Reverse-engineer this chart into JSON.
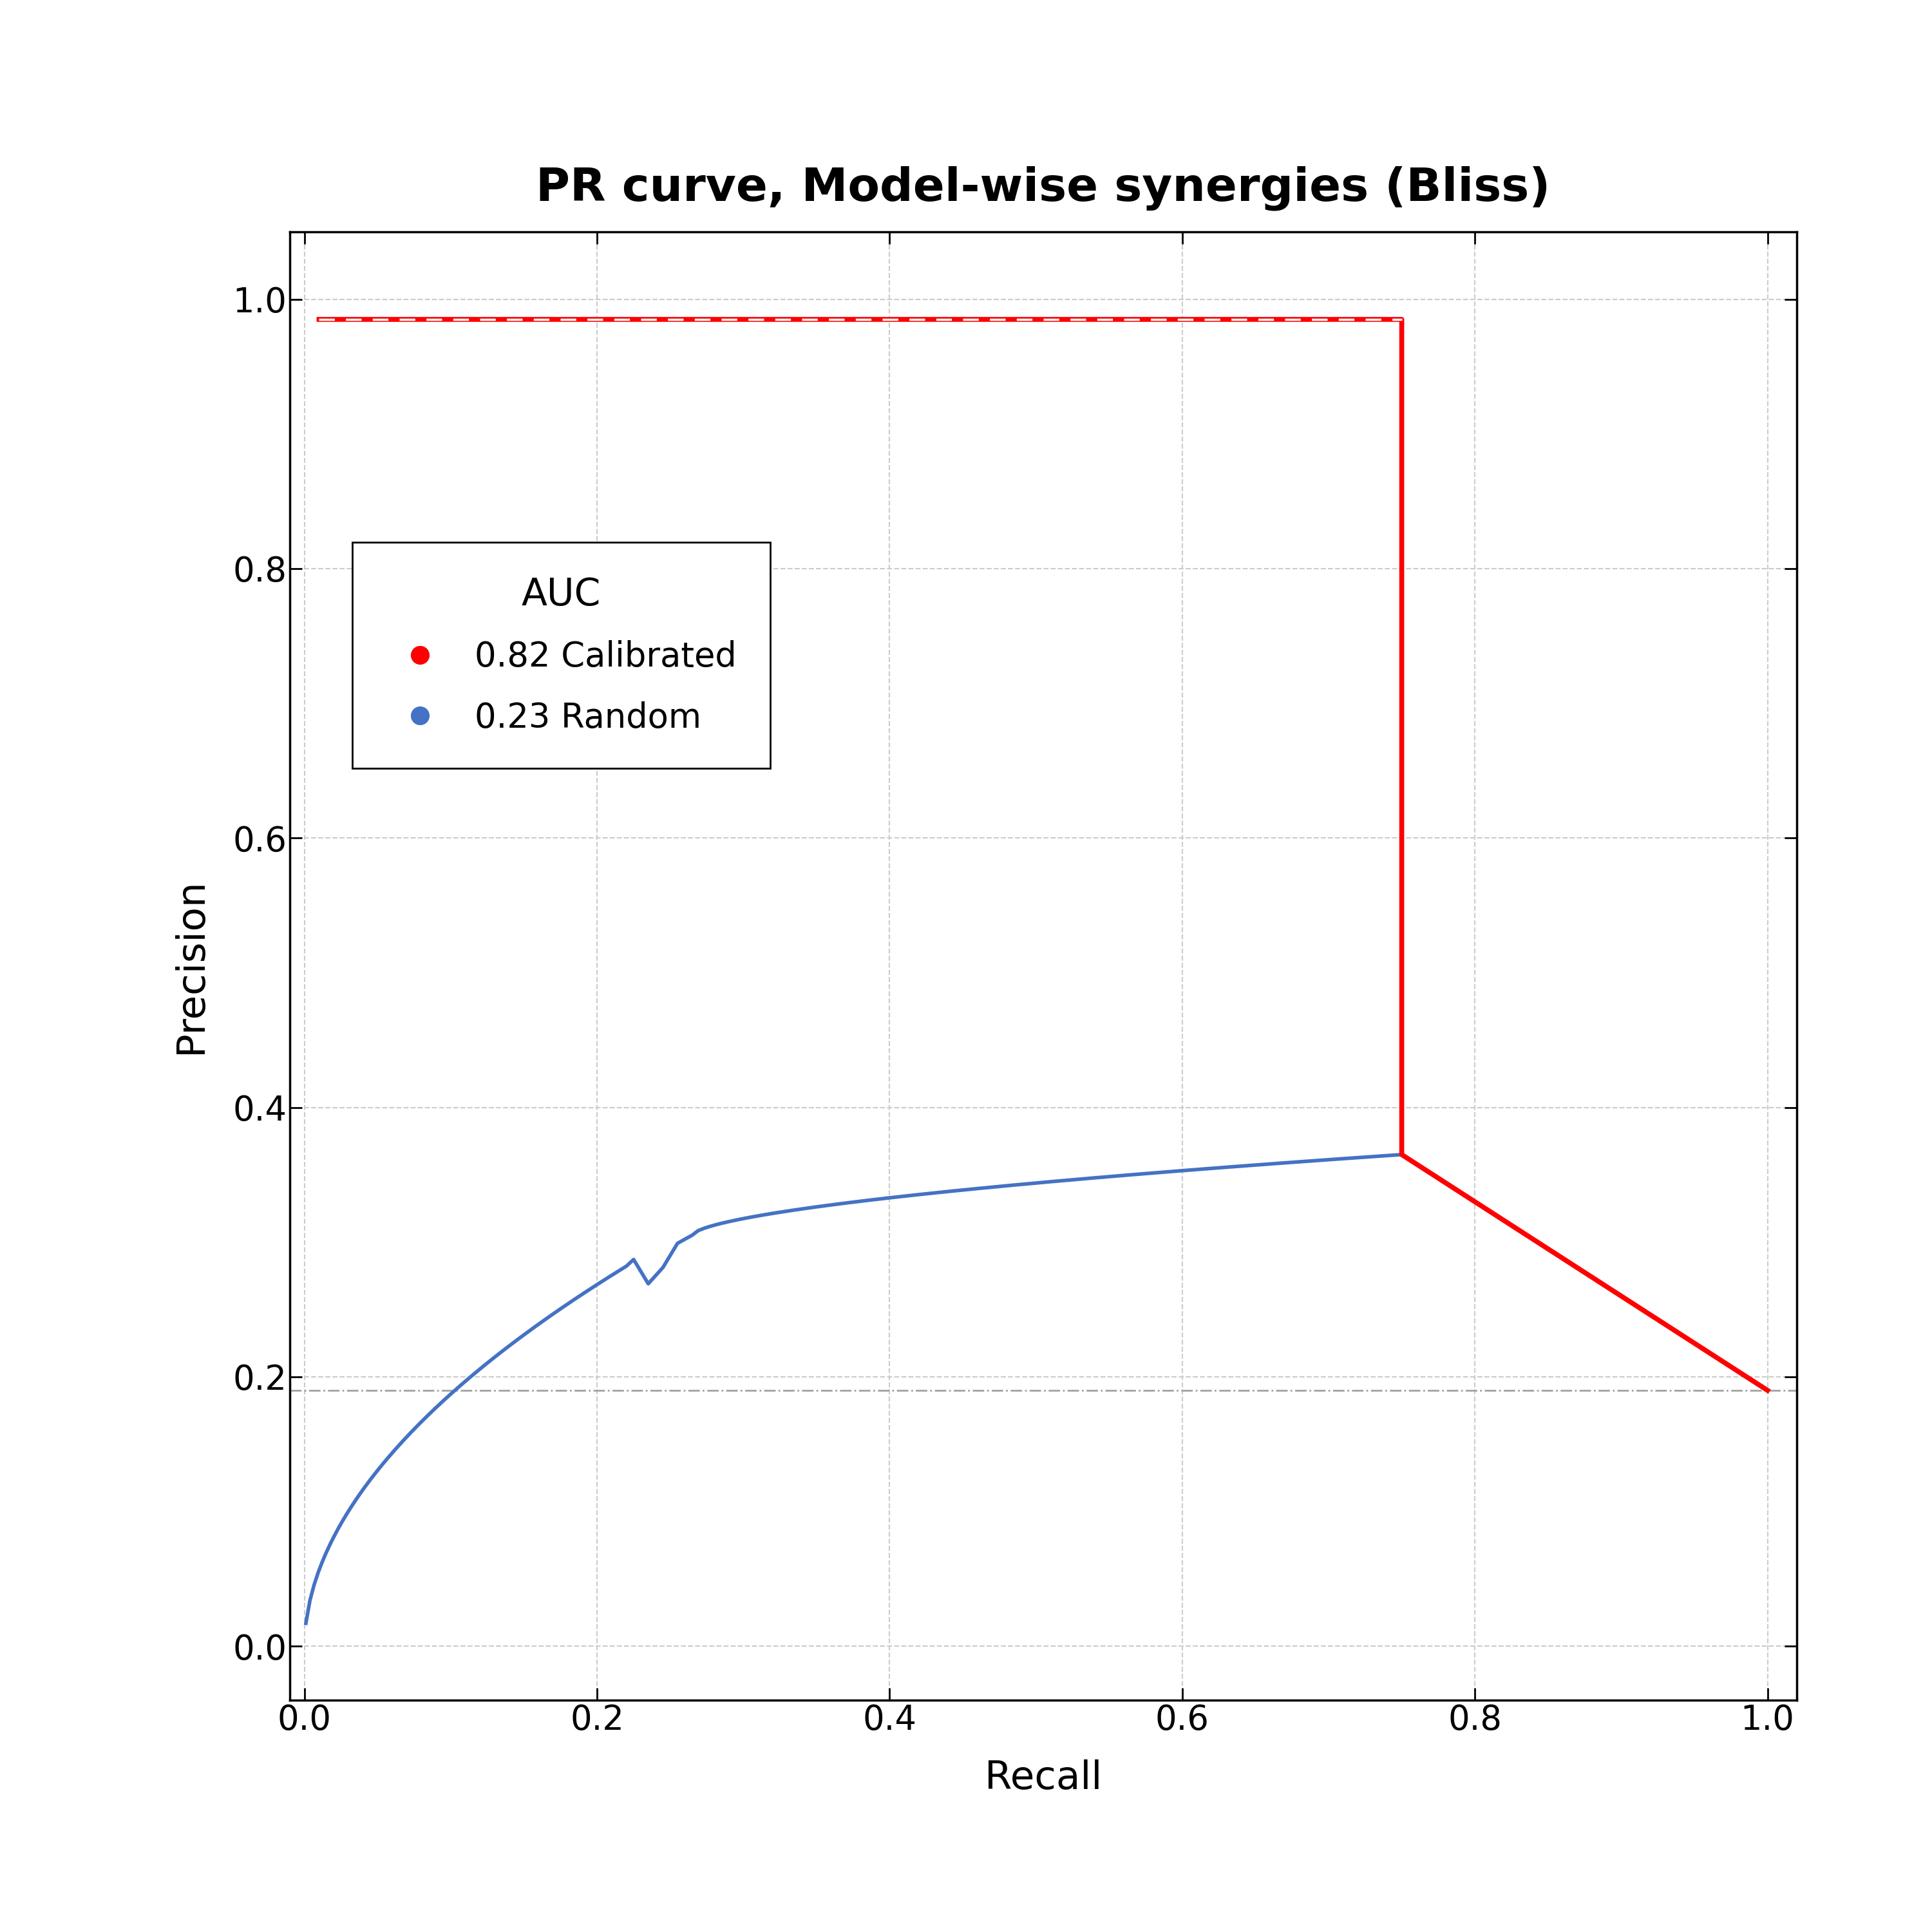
{
  "title": "PR curve, Model-wise synergies (Bliss)",
  "xlabel": "Recall",
  "ylabel": "Precision",
  "xlim": [
    0.0,
    1.0
  ],
  "ylim": [
    0.0,
    1.0
  ],
  "background_color": "#ffffff",
  "calibrated_color": "#ff0000",
  "random_color": "#4472c4",
  "baseline_color": "#999999",
  "baseline_value": 0.19,
  "calibrated_auc": "0.82",
  "random_auc": "0.23",
  "legend_title": "AUC",
  "title_fontsize": 52,
  "label_fontsize": 44,
  "tick_fontsize": 38,
  "legend_fontsize": 38,
  "legend_title_fontsize": 42
}
